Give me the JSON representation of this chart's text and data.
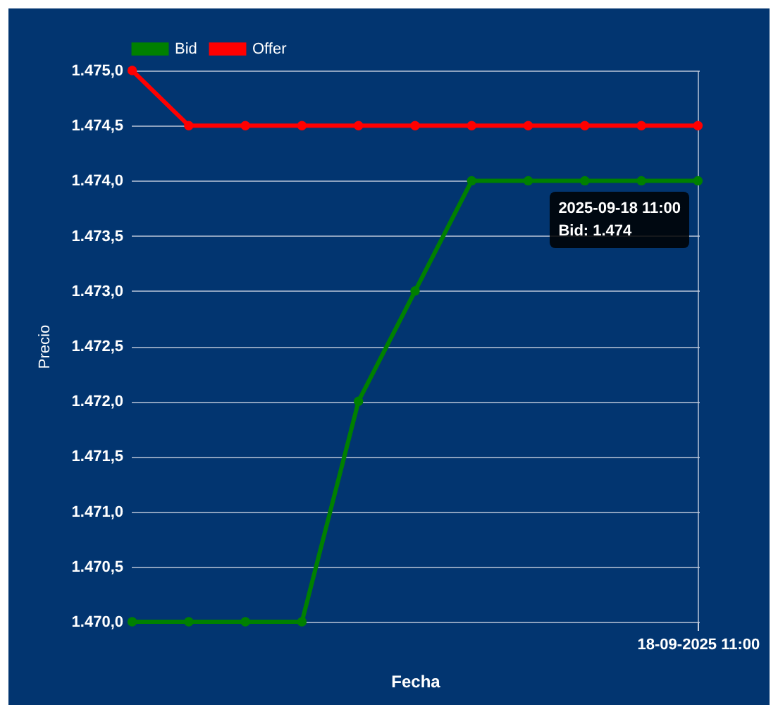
{
  "chart_data": {
    "type": "line",
    "xlabel": "Fecha",
    "ylabel": "Precio",
    "categories": [
      null,
      null,
      null,
      null,
      null,
      null,
      null,
      null,
      null,
      null,
      "18-09-2025 11:00"
    ],
    "series": [
      {
        "name": "Bid",
        "color": "#008000",
        "values": [
          1470,
          1470,
          1470,
          1470,
          1472,
          1473,
          1474,
          1474,
          1474,
          1474,
          1474
        ]
      },
      {
        "name": "Offer",
        "color": "#ff0000",
        "values": [
          1475,
          1474.5,
          1474.5,
          1474.5,
          1474.5,
          1474.5,
          1474.5,
          1474.5,
          1474.5,
          1474.5,
          1474.5
        ]
      }
    ],
    "ylim": [
      1470,
      1475
    ],
    "yticks": [
      {
        "value": 1470,
        "label": "1.470,0"
      },
      {
        "value": 1470.5,
        "label": "1.470,5"
      },
      {
        "value": 1471,
        "label": "1.471,0"
      },
      {
        "value": 1471.5,
        "label": "1.471,5"
      },
      {
        "value": 1472,
        "label": "1.472,0"
      },
      {
        "value": 1472.5,
        "label": "1.472,5"
      },
      {
        "value": 1473,
        "label": "1.473,0"
      },
      {
        "value": 1473.5,
        "label": "1.473,5"
      },
      {
        "value": 1474,
        "label": "1.474,0"
      },
      {
        "value": 1474.5,
        "label": "1.474,5"
      },
      {
        "value": 1475,
        "label": "1.475,0"
      }
    ],
    "annotations": [
      "2025-09-18 11:00",
      "Bid: 1.474"
    ],
    "grid": true,
    "legend": "top",
    "marker": "circle",
    "line_style": "solid"
  }
}
